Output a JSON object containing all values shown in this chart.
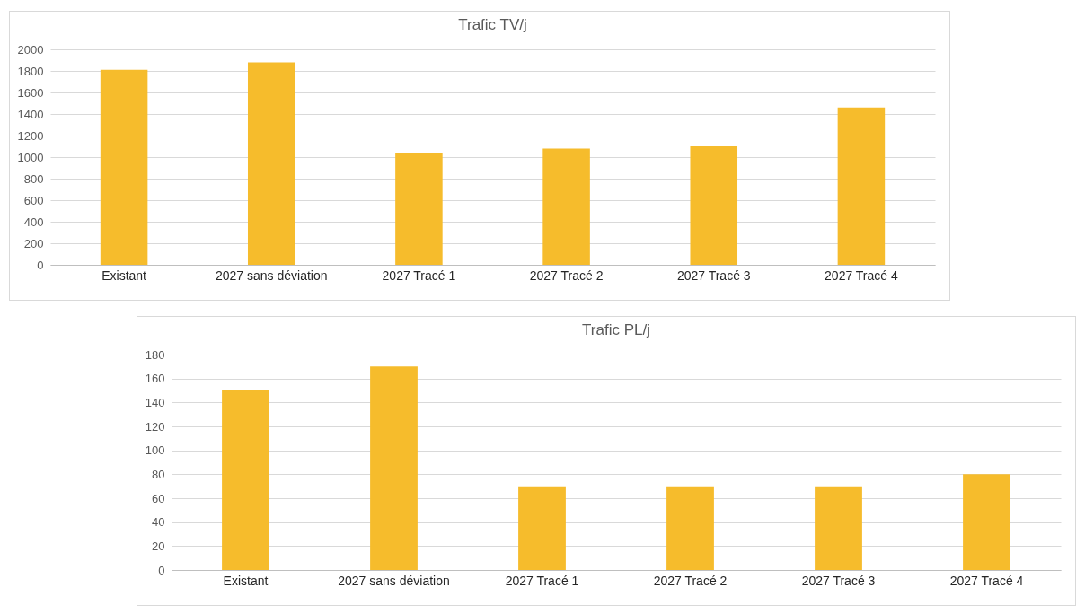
{
  "chart_data": [
    {
      "type": "bar",
      "title": "Trafic TV/j",
      "categories": [
        "Existant",
        "2027 sans déviation",
        "2027 Tracé 1",
        "2027 Tracé 2",
        "2027 Tracé 3",
        "2027 Tracé 4"
      ],
      "values": [
        1810,
        1880,
        1040,
        1080,
        1100,
        1460
      ],
      "color": "#f6bc2c",
      "ylim": [
        0,
        2000
      ],
      "yticks": [
        0,
        200,
        400,
        600,
        800,
        1000,
        1200,
        1400,
        1600,
        1800,
        2000
      ],
      "grid": "y"
    },
    {
      "type": "bar",
      "title": "Trafic PL/j",
      "categories": [
        "Existant",
        "2027 sans déviation",
        "2027 Tracé 1",
        "2027 Tracé 2",
        "2027 Tracé 3",
        "2027 Tracé 4"
      ],
      "values": [
        150,
        170,
        70,
        70,
        70,
        80
      ],
      "color": "#f6bc2c",
      "ylim": [
        0,
        180
      ],
      "yticks": [
        0,
        20,
        40,
        60,
        80,
        100,
        120,
        140,
        160,
        180
      ],
      "grid": "y"
    }
  ]
}
